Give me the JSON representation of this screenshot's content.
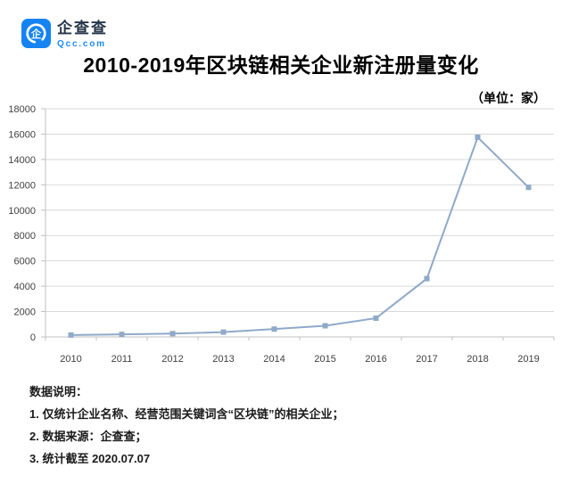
{
  "logo": {
    "name": "企查查",
    "domain": "Qcc.com",
    "icon_glyph": "企"
  },
  "title": "2010-2019年区块链相关企业新注册量变化",
  "unit_label": "（单位：家）",
  "colors": {
    "brand_blue": "#1583F2",
    "domain_blue": "#1989FA",
    "line": "#8FA9C9",
    "grid": "#D9D9D9",
    "axis": "#BFBFBF",
    "tick_label": "#404040"
  },
  "chart_data": {
    "type": "line",
    "title": "2010-2019年区块链相关企业新注册量变化",
    "unit": "家",
    "categories": [
      "2010",
      "2011",
      "2012",
      "2013",
      "2014",
      "2015",
      "2016",
      "2017",
      "2018",
      "2019"
    ],
    "values": [
      150,
      200,
      260,
      380,
      620,
      880,
      1480,
      4600,
      15750,
      11800
    ],
    "yticks": [
      0,
      2000,
      4000,
      6000,
      8000,
      10000,
      12000,
      14000,
      16000,
      18000
    ],
    "ylim": [
      0,
      18000
    ],
    "xlabel": "",
    "ylabel": "",
    "grid": true,
    "legend": false,
    "marker": "square",
    "line_color": "#8FA9C9"
  },
  "notes": {
    "heading": "数据说明：",
    "items": [
      "1. 仅统计企业名称、经营范围关键词含“区块链”的相关企业；",
      "2. 数据来源：企查查；",
      "3. 统计截至 2020.07.07"
    ]
  }
}
